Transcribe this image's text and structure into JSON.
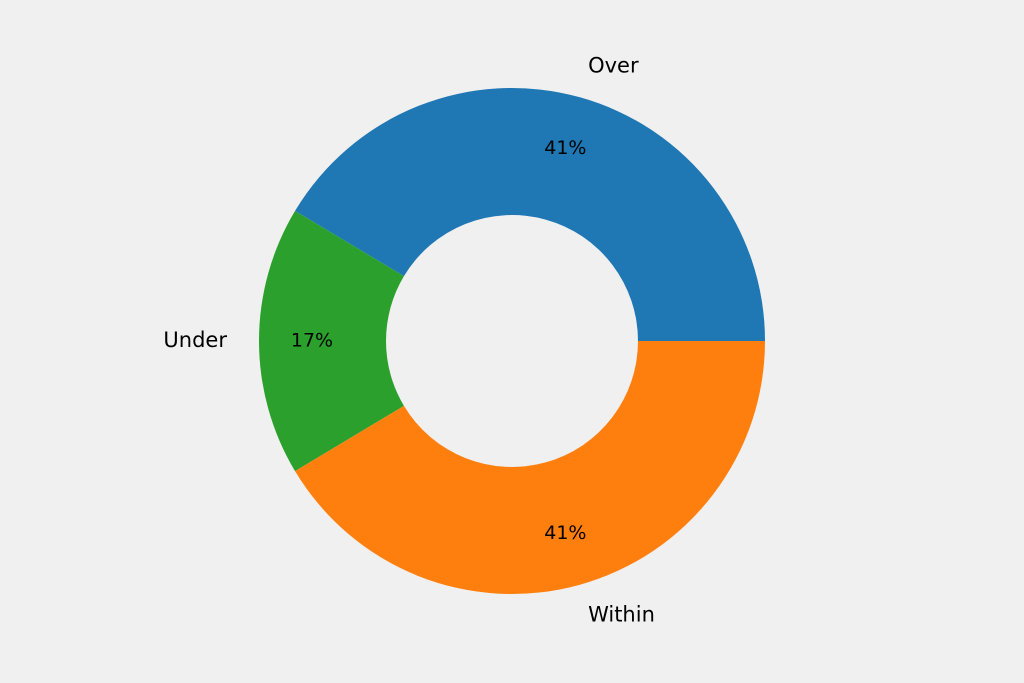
{
  "colors": {
    "background": "#f0f0f0",
    "text": "#000000"
  },
  "chart_data": {
    "type": "pie",
    "variant": "donut",
    "title": "",
    "categories": [
      "Over",
      "Under",
      "Within"
    ],
    "values": [
      41.4,
      17.2,
      41.4
    ],
    "percent_labels": [
      "41%",
      "17%",
      "41%"
    ],
    "colors": [
      "#1f77b4",
      "#2ca02c",
      "#ff7f0e"
    ],
    "legend": "none"
  }
}
